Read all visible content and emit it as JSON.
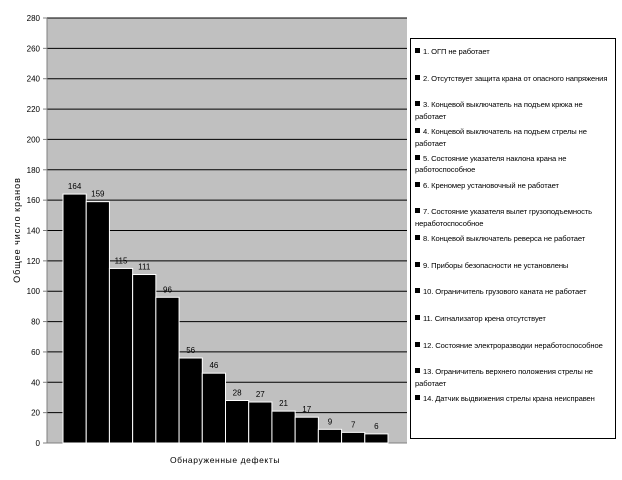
{
  "chart_data": {
    "type": "bar",
    "title": "",
    "xlabel": "Обнаруженные дефекты",
    "ylabel": "Общее число кранов",
    "ylim": [
      0,
      280
    ],
    "yticks": [
      0,
      20,
      40,
      60,
      80,
      100,
      120,
      140,
      160,
      180,
      200,
      220,
      240,
      260,
      280
    ],
    "grid": true,
    "legend_position": "right",
    "colors": {
      "bar": "#000000",
      "plot_bg": "#c0c0c0",
      "bar_edge": "#ffffff"
    },
    "categories": [
      "1. ОГП не работает",
      "2. Отсутствует защита крана от опасного напряжения",
      "3. Концевой выключатель на подъем крюка не работает",
      "4. Концевой выключатель на подъем стрелы не работает",
      "5. Состояние указателя наклона крана не работоспособное",
      "6. Креномер установочный не работает",
      "7. Состояние указателя вылет грузоподъемность неработоспособное",
      "8. Концевой выключатель реверса не работает",
      "9. Приборы безопасности не установлены",
      "10. Ограничитель грузового каната не работает",
      "11. Сигнализатор крена отсутствует",
      "12. Состояние электроразводки неработоспособное",
      "13. Ограничитель верхнего положения стрелы не работает",
      "14. Датчик выдвижения стрелы крана неисправен"
    ],
    "values": [
      164,
      159,
      115,
      111,
      96,
      56,
      46,
      28,
      27,
      21,
      17,
      9,
      7,
      6
    ]
  }
}
